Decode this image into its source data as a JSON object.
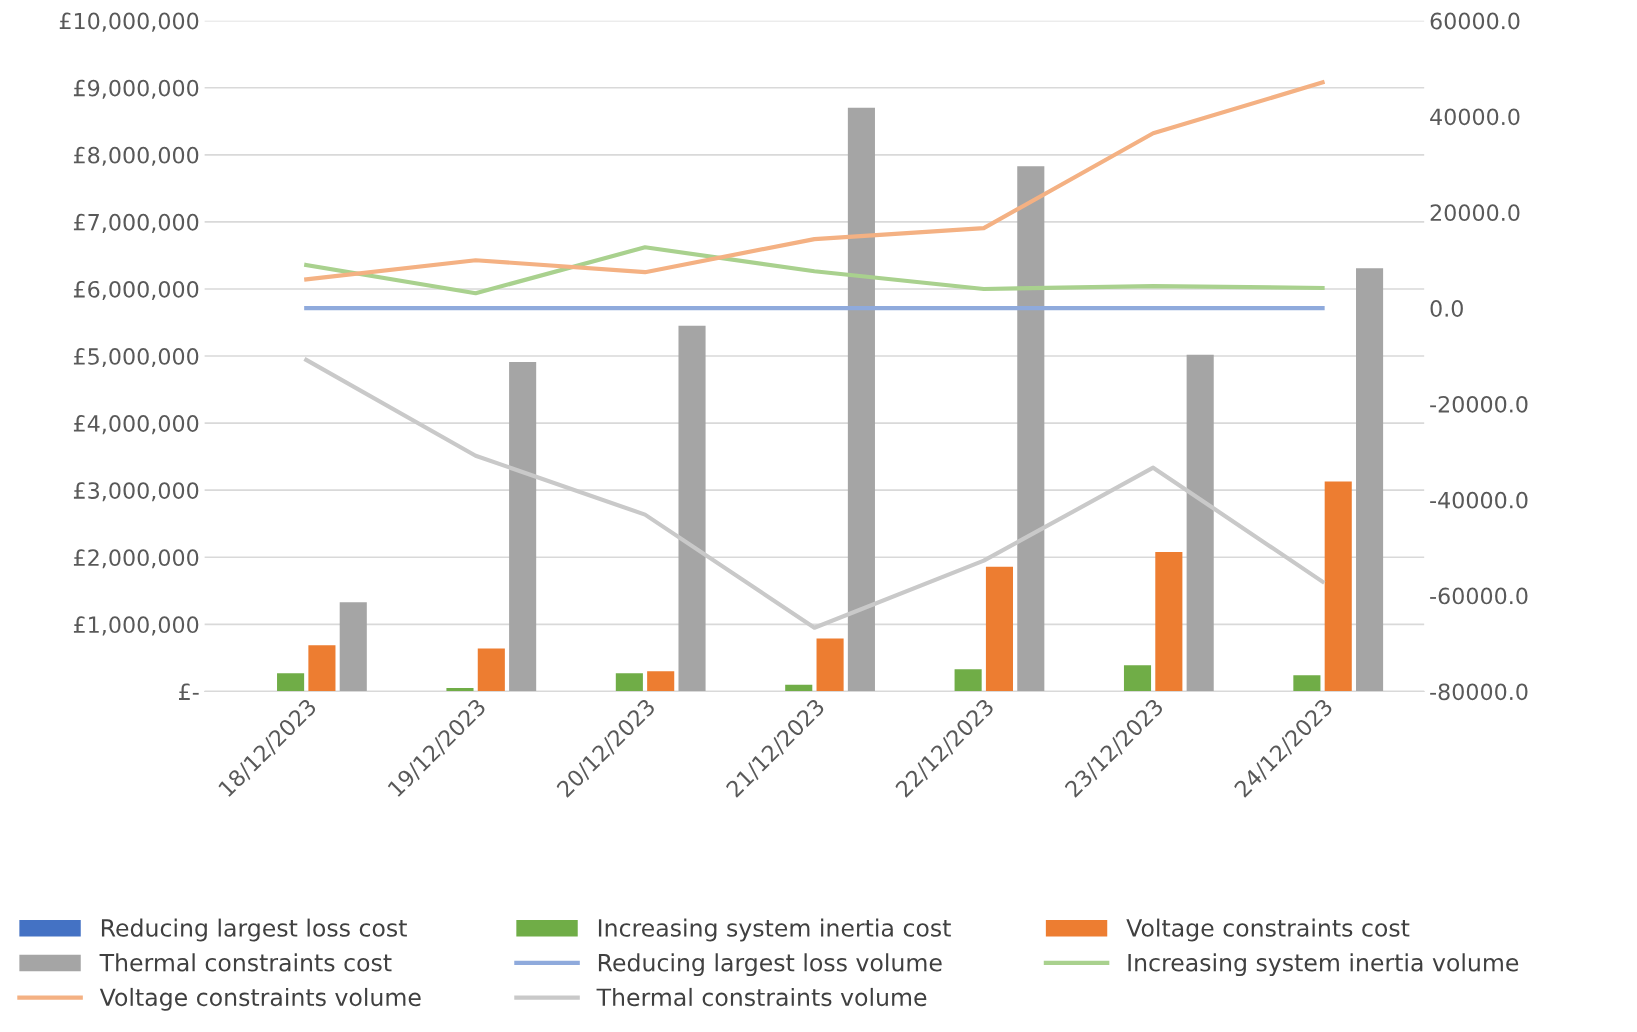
{
  "chart_data": {
    "type": "bar",
    "categories": [
      "18/12/2023",
      "19/12/2023",
      "20/12/2023",
      "21/12/2023",
      "22/12/2023",
      "23/12/2023",
      "24/12/2023"
    ],
    "series": [
      {
        "name": "Reducing largest loss cost",
        "color": "#4472c4",
        "values": [
          0,
          0,
          0,
          0,
          0,
          0,
          0
        ]
      },
      {
        "name": "Increasing system inertia cost",
        "color": "#70ad47",
        "values": [
          270000,
          50000,
          270000,
          100000,
          330000,
          390000,
          240000
        ]
      },
      {
        "name": "Voltage constraints cost",
        "color": "#ed7d31",
        "values": [
          690000,
          640000,
          300000,
          790000,
          1860000,
          2080000,
          3130000
        ]
      },
      {
        "name": "Thermal constraints cost",
        "color": "#a5a5a5",
        "values": [
          1330000,
          4910000,
          5450000,
          8700000,
          7830000,
          5020000,
          6310000
        ]
      },
      {
        "name": "Reducing largest loss volume",
        "color": "#8faadc",
        "type": "line",
        "axis": "y2",
        "values": [
          0,
          0,
          0,
          0,
          0,
          0,
          0
        ]
      },
      {
        "name": "Increasing system inertia volume",
        "color": "#a9d18e",
        "type": "line",
        "axis": "y2",
        "values": [
          9000,
          3100,
          12700,
          7700,
          4000,
          4600,
          4200
        ]
      },
      {
        "name": "Voltage constraints volume",
        "color": "#f4b183",
        "type": "line",
        "axis": "y2",
        "values": [
          6000,
          10000,
          7500,
          14400,
          16700,
          36500,
          47100
        ]
      },
      {
        "name": "Thermal constraints volume",
        "color": "#c9c9c9",
        "type": "line",
        "axis": "y2",
        "values": [
          -10800,
          -30800,
          -43100,
          -66700,
          -52700,
          -33300,
          -57100
        ]
      }
    ],
    "ylim": [
      0,
      10000000
    ],
    "yticks": [
      {
        "value": 0,
        "label": "£-"
      },
      {
        "value": 1000000,
        "label": "£1,000,000"
      },
      {
        "value": 2000000,
        "label": "£2,000,000"
      },
      {
        "value": 3000000,
        "label": "£3,000,000"
      },
      {
        "value": 4000000,
        "label": "£4,000,000"
      },
      {
        "value": 5000000,
        "label": "£5,000,000"
      },
      {
        "value": 6000000,
        "label": "£6,000,000"
      },
      {
        "value": 7000000,
        "label": "£7,000,000"
      },
      {
        "value": 8000000,
        "label": "£8,000,000"
      },
      {
        "value": 9000000,
        "label": "£9,000,000"
      },
      {
        "value": 10000000,
        "label": "£10,000,000"
      }
    ],
    "y2lim": [
      -80000,
      60000
    ],
    "y2ticks": [
      {
        "value": -80000,
        "label": "-80000.0"
      },
      {
        "value": -60000,
        "label": "-60000.0"
      },
      {
        "value": -40000,
        "label": "-40000.0"
      },
      {
        "value": -20000,
        "label": "-20000.0"
      },
      {
        "value": 0,
        "label": "0.0"
      },
      {
        "value": 20000,
        "label": "20000.0"
      },
      {
        "value": 40000,
        "label": "40000.0"
      },
      {
        "value": 60000,
        "label": "60000.0"
      }
    ],
    "grid": "y",
    "legend": "bottom",
    "marker": "none",
    "line_style": "solid"
  }
}
